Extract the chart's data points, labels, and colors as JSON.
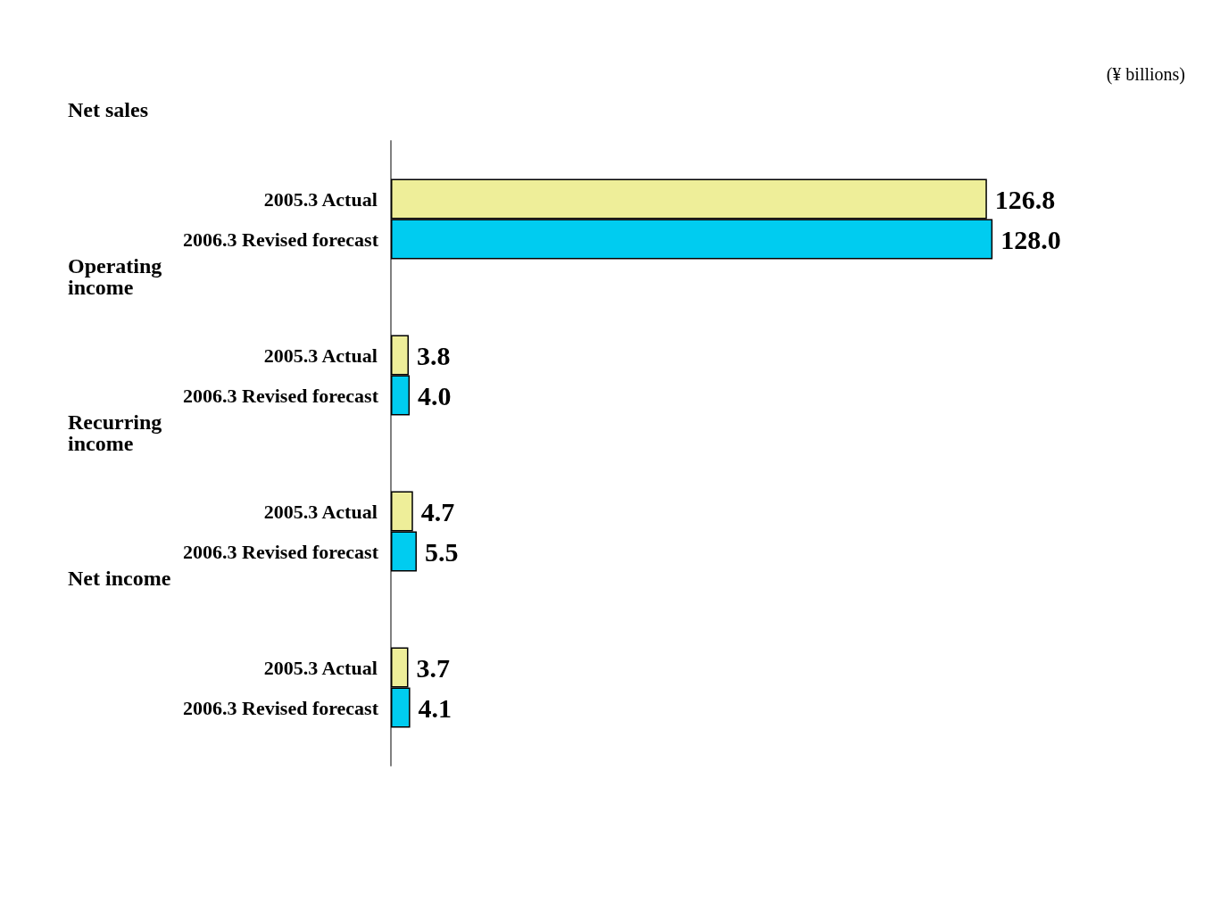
{
  "chart_data": {
    "type": "bar",
    "orientation": "horizontal",
    "subtitle": "(¥ billions)",
    "categories": [
      "Net sales",
      "Operating income",
      "Recurring income",
      "Net income"
    ],
    "series": [
      {
        "name": "2005.3 Actual",
        "color": "#eeee99",
        "values": [
          126.8,
          3.8,
          4.7,
          3.7
        ],
        "value_labels": [
          "126.8",
          "3.8",
          "4.7",
          "3.7"
        ]
      },
      {
        "name": "2006.3 Revised forecast",
        "color": "#00ccf0",
        "values": [
          128.0,
          4.0,
          5.5,
          4.1
        ],
        "value_labels": [
          "128.0",
          "4.0",
          "5.5",
          "4.1"
        ]
      }
    ],
    "grid": false,
    "legend": false
  }
}
